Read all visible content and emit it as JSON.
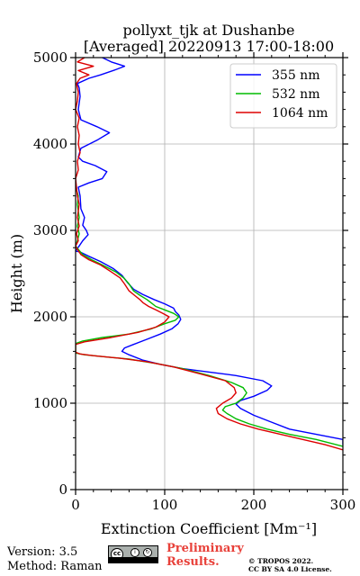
{
  "chart_data": {
    "type": "line",
    "title_line1": "pollyxt_tjk at Dushanbe",
    "title_line2": "[Averaged] 20220913 17:00-18:00",
    "xlabel": "Extinction Coefficient [Mm⁻¹]",
    "ylabel": "Height (m)",
    "xlim": [
      0,
      300
    ],
    "ylim": [
      0,
      5000
    ],
    "xticks": [
      0,
      100,
      200,
      300
    ],
    "yticks": [
      0,
      1000,
      2000,
      3000,
      4000,
      5000
    ],
    "grid": true,
    "legend_position": "top-right",
    "series": [
      {
        "name": "355 nm",
        "color": "#0000ff",
        "points": [
          [
            330,
            310
          ],
          [
            320,
            360
          ],
          [
            310,
            400
          ],
          [
            300,
            520
          ],
          [
            300,
            580
          ],
          [
            270,
            640
          ],
          [
            240,
            700
          ],
          [
            220,
            780
          ],
          [
            200,
            860
          ],
          [
            185,
            940
          ],
          [
            180,
            990
          ],
          [
            185,
            1030
          ],
          [
            200,
            1080
          ],
          [
            215,
            1150
          ],
          [
            220,
            1200
          ],
          [
            210,
            1260
          ],
          [
            180,
            1320
          ],
          [
            150,
            1360
          ],
          [
            120,
            1400
          ],
          [
            95,
            1450
          ],
          [
            75,
            1500
          ],
          [
            60,
            1560
          ],
          [
            52,
            1600
          ],
          [
            55,
            1640
          ],
          [
            65,
            1680
          ],
          [
            80,
            1740
          ],
          [
            95,
            1800
          ],
          [
            108,
            1860
          ],
          [
            115,
            1920
          ],
          [
            118,
            1970
          ],
          [
            116,
            2020
          ],
          [
            112,
            2060
          ],
          [
            110,
            2100
          ],
          [
            100,
            2150
          ],
          [
            88,
            2200
          ],
          [
            75,
            2260
          ],
          [
            65,
            2320
          ],
          [
            58,
            2400
          ],
          [
            52,
            2480
          ],
          [
            42,
            2560
          ],
          [
            28,
            2640
          ],
          [
            15,
            2700
          ],
          [
            5,
            2750
          ],
          [
            0,
            2760
          ],
          [
            4,
            2820
          ],
          [
            8,
            2880
          ],
          [
            14,
            2950
          ],
          [
            12,
            3000
          ],
          [
            8,
            3060
          ],
          [
            10,
            3150
          ],
          [
            6,
            3250
          ],
          [
            5,
            3400
          ],
          [
            3,
            3500
          ],
          [
            15,
            3550
          ],
          [
            30,
            3600
          ],
          [
            35,
            3680
          ],
          [
            22,
            3750
          ],
          [
            8,
            3800
          ],
          [
            3,
            3850
          ],
          [
            6,
            3950
          ],
          [
            25,
            4050
          ],
          [
            38,
            4130
          ],
          [
            24,
            4200
          ],
          [
            6,
            4280
          ],
          [
            3,
            4400
          ],
          [
            5,
            4550
          ],
          [
            4,
            4650
          ],
          [
            2,
            4700
          ],
          [
            15,
            4760
          ],
          [
            28,
            4800
          ],
          [
            45,
            4860
          ],
          [
            55,
            4900
          ],
          [
            40,
            4950
          ],
          [
            30,
            5000
          ]
        ]
      },
      {
        "name": "532 nm",
        "color": "#00bb00",
        "points": [
          [
            330,
            330
          ],
          [
            320,
            360
          ],
          [
            310,
            400
          ],
          [
            300,
            500
          ],
          [
            270,
            580
          ],
          [
            240,
            640
          ],
          [
            215,
            700
          ],
          [
            195,
            760
          ],
          [
            180,
            820
          ],
          [
            170,
            880
          ],
          [
            165,
            920
          ],
          [
            168,
            960
          ],
          [
            180,
            1000
          ],
          [
            188,
            1060
          ],
          [
            192,
            1120
          ],
          [
            188,
            1180
          ],
          [
            175,
            1240
          ],
          [
            150,
            1320
          ],
          [
            120,
            1400
          ],
          [
            90,
            1460
          ],
          [
            60,
            1510
          ],
          [
            30,
            1540
          ],
          [
            10,
            1560
          ],
          [
            0,
            1580
          ],
          [
            0,
            1690
          ],
          [
            8,
            1720
          ],
          [
            30,
            1760
          ],
          [
            60,
            1800
          ],
          [
            85,
            1860
          ],
          [
            100,
            1920
          ],
          [
            112,
            1960
          ],
          [
            116,
            2000
          ],
          [
            110,
            2040
          ],
          [
            100,
            2080
          ],
          [
            90,
            2120
          ],
          [
            85,
            2160
          ],
          [
            80,
            2200
          ],
          [
            72,
            2250
          ],
          [
            65,
            2300
          ],
          [
            60,
            2380
          ],
          [
            54,
            2450
          ],
          [
            45,
            2520
          ],
          [
            30,
            2600
          ],
          [
            18,
            2660
          ],
          [
            8,
            2720
          ],
          [
            3,
            2780
          ],
          [
            0,
            2820
          ],
          [
            2,
            2880
          ],
          [
            4,
            2960
          ],
          [
            2,
            3050
          ],
          [
            4,
            3150
          ],
          [
            2,
            3300
          ],
          [
            3,
            3400
          ],
          [
            0,
            3500
          ]
        ]
      },
      {
        "name": "1064 nm",
        "color": "#dd0000",
        "points": [
          [
            330,
            330
          ],
          [
            320,
            360
          ],
          [
            310,
            380
          ],
          [
            300,
            460
          ],
          [
            280,
            520
          ],
          [
            255,
            580
          ],
          [
            230,
            640
          ],
          [
            205,
            700
          ],
          [
            185,
            760
          ],
          [
            170,
            820
          ],
          [
            160,
            880
          ],
          [
            158,
            940
          ],
          [
            165,
            1000
          ],
          [
            175,
            1060
          ],
          [
            180,
            1120
          ],
          [
            178,
            1180
          ],
          [
            168,
            1260
          ],
          [
            140,
            1340
          ],
          [
            110,
            1420
          ],
          [
            80,
            1480
          ],
          [
            50,
            1520
          ],
          [
            20,
            1550
          ],
          [
            5,
            1570
          ],
          [
            0,
            1590
          ],
          [
            0,
            1680
          ],
          [
            10,
            1710
          ],
          [
            40,
            1760
          ],
          [
            70,
            1820
          ],
          [
            90,
            1880
          ],
          [
            100,
            1940
          ],
          [
            105,
            2000
          ],
          [
            98,
            2040
          ],
          [
            90,
            2080
          ],
          [
            82,
            2120
          ],
          [
            76,
            2160
          ],
          [
            72,
            2200
          ],
          [
            66,
            2250
          ],
          [
            60,
            2300
          ],
          [
            55,
            2380
          ],
          [
            50,
            2450
          ],
          [
            40,
            2520
          ],
          [
            28,
            2600
          ],
          [
            15,
            2660
          ],
          [
            6,
            2720
          ],
          [
            2,
            2780
          ],
          [
            0,
            2820
          ],
          [
            3,
            2880
          ],
          [
            1,
            2960
          ],
          [
            4,
            3050
          ],
          [
            2,
            3150
          ],
          [
            4,
            3300
          ],
          [
            2,
            3400
          ],
          [
            0,
            3600
          ],
          [
            3,
            3700
          ],
          [
            2,
            3800
          ],
          [
            5,
            3900
          ],
          [
            3,
            4000
          ],
          [
            4,
            4100
          ],
          [
            2,
            4200
          ],
          [
            4,
            4300
          ],
          [
            0,
            4400
          ],
          [
            2,
            4500
          ],
          [
            3,
            4600
          ],
          [
            1,
            4700
          ],
          [
            5,
            4760
          ],
          [
            15,
            4800
          ],
          [
            3,
            4850
          ],
          [
            20,
            4900
          ],
          [
            2,
            4950
          ],
          [
            10,
            5000
          ]
        ]
      }
    ]
  },
  "footer": {
    "version": "Version: 3.5",
    "method": "Method: Raman",
    "preliminary_line1": "Preliminary",
    "preliminary_line2": "Results.",
    "copyright_line1": "© TROPOS 2022.",
    "copyright_line2": "CC BY SA 4.0 License."
  },
  "license_badge": {
    "icon": "cc-by-sa-icon",
    "main_text": "cc",
    "sub_icon_1": "i",
    "sub_icon_2": "↻",
    "sub_text": "BY SA"
  }
}
